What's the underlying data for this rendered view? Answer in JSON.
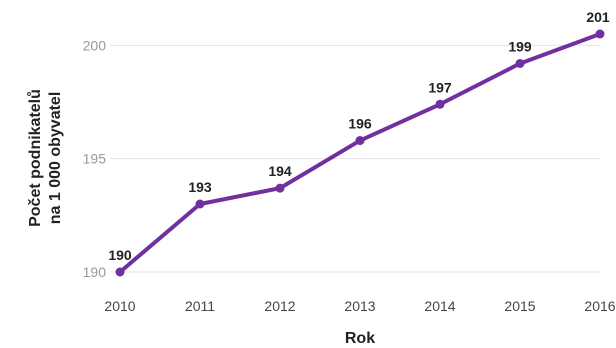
{
  "chart_data": {
    "type": "line",
    "title": "",
    "x": [
      "2010",
      "2011",
      "2012",
      "2013",
      "2014",
      "2015",
      "2016"
    ],
    "series": [
      {
        "values": [
          190,
          193,
          193.7,
          195.8,
          197.4,
          199.2,
          200.5
        ],
        "data_labels": [
          "190",
          "193",
          "194",
          "196",
          "197",
          "199",
          "201"
        ],
        "color": "#7030a0"
      }
    ],
    "xlabel": "Rok",
    "ylabel_lines": [
      "Počet podnikatelů",
      "na 1 000 obyvatel"
    ],
    "ylim": [
      190,
      200.5
    ],
    "yticks": [
      190,
      195,
      200
    ],
    "grid": true,
    "legend": "none"
  }
}
